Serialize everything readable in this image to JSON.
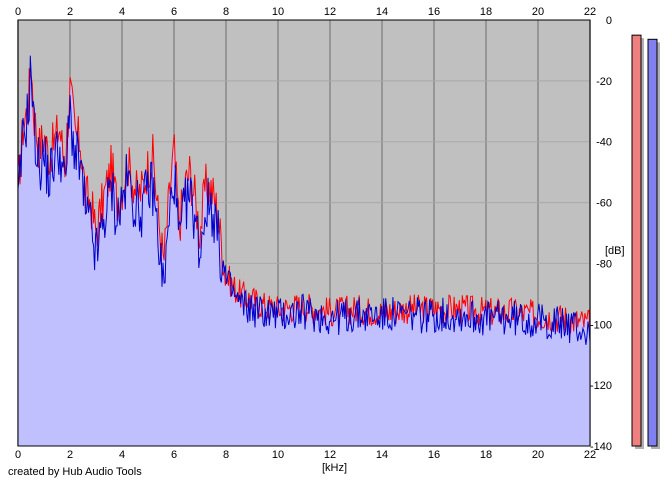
{
  "credit": "created by Hub Audio Tools",
  "chart_data": {
    "type": "line",
    "xlabel": "[kHz]",
    "ylabel": "[dB]",
    "xlim": [
      0,
      22
    ],
    "ylim": [
      -140,
      0
    ],
    "x_ticks": [
      "0",
      "2",
      "4",
      "6",
      "8",
      "10",
      "12",
      "14",
      "16",
      "18",
      "20",
      "22"
    ],
    "y_ticks": [
      "0",
      "-20",
      "-40",
      "-60",
      "-80",
      "-100",
      "-120",
      "-140"
    ],
    "grid": true,
    "colors": {
      "background": "#c0c0c0",
      "fill": "#c0c0ff",
      "left_channel": "#ff0000",
      "right_channel": "#0000c8",
      "gridline": "#e0e0e0",
      "left_meter": "#f08080",
      "right_meter": "#8080f0"
    },
    "series": [
      {
        "x": [
          0,
          0.2,
          0.4,
          0.5,
          0.6,
          0.8,
          1.0,
          1.2,
          1.4,
          1.6,
          1.8,
          2.0,
          2.2,
          2.4,
          2.6,
          2.8,
          3.0,
          3.2,
          3.4,
          3.6,
          3.8,
          4.0,
          4.2,
          4.4,
          4.6,
          4.8,
          5.0,
          5.2,
          5.4,
          5.6,
          5.8,
          6.0,
          6.2,
          6.4,
          6.6,
          6.8,
          7.0,
          7.2,
          7.4,
          7.6,
          7.8,
          8.0,
          8.5,
          9.0,
          9.5,
          10,
          11,
          12,
          13,
          14,
          15,
          16,
          17,
          18,
          19,
          20,
          21,
          21.5,
          22
        ],
        "values": [
          -55,
          -35,
          -28,
          -12,
          -30,
          -42,
          -38,
          -45,
          -40,
          -35,
          -48,
          -22,
          -38,
          -40,
          -58,
          -60,
          -70,
          -62,
          -55,
          -48,
          -60,
          -55,
          -47,
          -52,
          -58,
          -55,
          -48,
          -45,
          -65,
          -80,
          -60,
          -42,
          -68,
          -55,
          -50,
          -58,
          -70,
          -55,
          -55,
          -60,
          -72,
          -84,
          -90,
          -92,
          -94,
          -95,
          -94,
          -96,
          -95,
          -96,
          -95,
          -95,
          -95,
          -96,
          -96,
          -97,
          -98,
          -99,
          -100
        ]
      },
      {
        "x": [
          0,
          0.2,
          0.4,
          0.5,
          0.6,
          0.8,
          1.0,
          1.2,
          1.4,
          1.6,
          1.8,
          2.0,
          2.2,
          2.4,
          2.6,
          2.8,
          3.0,
          3.2,
          3.4,
          3.6,
          3.8,
          4.0,
          4.2,
          4.4,
          4.6,
          4.8,
          5.0,
          5.2,
          5.4,
          5.6,
          5.8,
          6.0,
          6.2,
          6.4,
          6.6,
          6.8,
          7.0,
          7.2,
          7.4,
          7.6,
          7.8,
          8.0,
          8.5,
          9.0,
          9.5,
          10,
          11,
          12,
          13,
          14,
          15,
          16,
          17,
          18,
          19,
          20,
          21,
          21.5,
          22
        ],
        "values": [
          -62,
          -38,
          -30,
          -14,
          -35,
          -48,
          -45,
          -52,
          -45,
          -42,
          -55,
          -30,
          -45,
          -48,
          -64,
          -68,
          -78,
          -70,
          -62,
          -55,
          -65,
          -60,
          -52,
          -58,
          -62,
          -62,
          -55,
          -55,
          -72,
          -88,
          -68,
          -50,
          -74,
          -62,
          -58,
          -64,
          -76,
          -62,
          -60,
          -66,
          -78,
          -86,
          -93,
          -95,
          -96,
          -97,
          -96,
          -98,
          -97,
          -97,
          -97,
          -97,
          -97,
          -98,
          -98,
          -99,
          -100,
          -101,
          -104
        ]
      }
    ],
    "meters": [
      {
        "value": 0.99
      },
      {
        "value": 0.98
      }
    ]
  }
}
